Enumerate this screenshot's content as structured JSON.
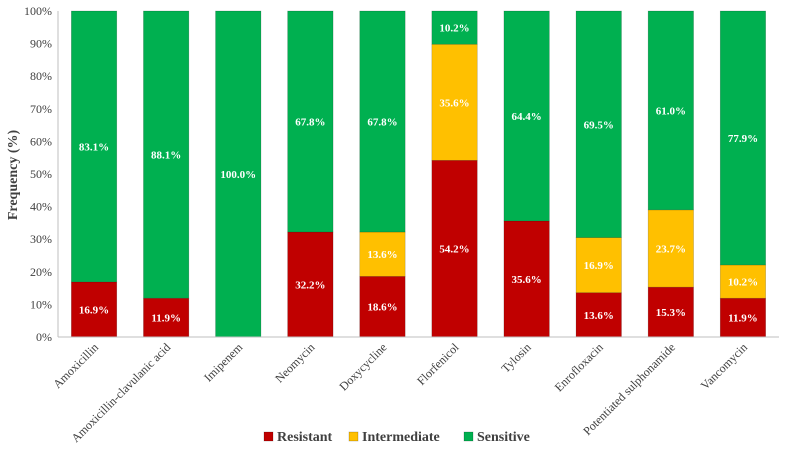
{
  "chart_data": {
    "type": "bar",
    "stacked": true,
    "title": "",
    "xlabel": "",
    "ylabel": "Frequency (%)",
    "ylim": [
      0,
      100
    ],
    "yticks": [
      "0%",
      "10%",
      "20%",
      "30%",
      "40%",
      "50%",
      "60%",
      "70%",
      "80%",
      "90%",
      "100%"
    ],
    "categories": [
      "Amoxicillin",
      "Amoxicillin-clavulanic acid",
      "Imipenem",
      "Neomycin",
      "Doxycycline",
      "Florfenicol",
      "Tylosin",
      "Enrofloxacin",
      "Potentiated sulphonamide",
      "Vancomycin"
    ],
    "series": [
      {
        "name": "Resistant",
        "color": "#C00000",
        "values": [
          16.9,
          11.9,
          0,
          32.2,
          18.6,
          54.2,
          35.6,
          13.6,
          15.3,
          11.9
        ],
        "labels": [
          "16.9%",
          "11.9%",
          "",
          "32.2%",
          "18.6%",
          "54.2%",
          "35.6%",
          "13.6%",
          "15.3%",
          "11.9%"
        ]
      },
      {
        "name": "Intermediate",
        "color": "#FFC000",
        "values": [
          0,
          0,
          0,
          0,
          13.6,
          35.6,
          0,
          16.9,
          23.7,
          10.2
        ],
        "labels": [
          "",
          "",
          "",
          "",
          "13.6%",
          "35.6%",
          "",
          "16.9%",
          "23.7%",
          "10.2%"
        ]
      },
      {
        "name": "Sensitive",
        "color": "#00B050",
        "values": [
          83.1,
          88.1,
          100.0,
          67.8,
          67.8,
          10.2,
          64.4,
          69.5,
          61.0,
          77.9
        ],
        "labels": [
          "83.1%",
          "88.1%",
          "100.0%",
          "67.8%",
          "67.8%",
          "10.2%",
          "64.4%",
          "69.5%",
          "61.0%",
          "77.9%"
        ]
      }
    ],
    "legend_position": "bottom"
  }
}
